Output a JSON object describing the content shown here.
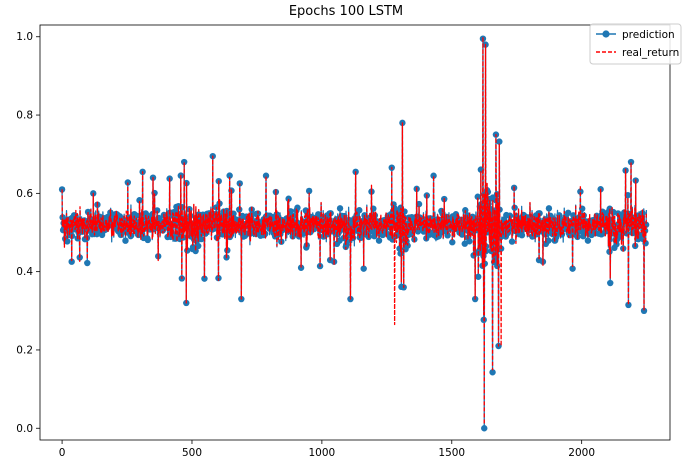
{
  "chart_data": {
    "type": "line",
    "title": "Epochs 100 LSTM",
    "xlabel": "",
    "ylabel": "",
    "xlim": [
      -85,
      2340
    ],
    "ylim": [
      -0.03,
      1.03
    ],
    "xticks": [
      0,
      500,
      1000,
      1500,
      2000
    ],
    "yticks": [
      0.0,
      0.2,
      0.4,
      0.6,
      0.8,
      1.0
    ],
    "xtick_labels": [
      "0",
      "500",
      "1000",
      "1500",
      "2000"
    ],
    "ytick_labels": [
      "0.0",
      "0.2",
      "0.4",
      "0.6",
      "0.8",
      "1.0"
    ],
    "grid": false,
    "legend_position": "top-right",
    "n_points": 2250,
    "series": [
      {
        "name": "prediction",
        "style": "solid line with circle markers",
        "color": "#1f77b4",
        "baseline": 0.52,
        "notable_points": [
          {
            "x": 0,
            "y": 0.61
          },
          {
            "x": 120,
            "y": 0.6
          },
          {
            "x": 310,
            "y": 0.655
          },
          {
            "x": 350,
            "y": 0.64
          },
          {
            "x": 470,
            "y": 0.68
          },
          {
            "x": 478,
            "y": 0.32
          },
          {
            "x": 580,
            "y": 0.695
          },
          {
            "x": 690,
            "y": 0.33
          },
          {
            "x": 785,
            "y": 0.645
          },
          {
            "x": 920,
            "y": 0.41
          },
          {
            "x": 1110,
            "y": 0.33
          },
          {
            "x": 1130,
            "y": 0.655
          },
          {
            "x": 1310,
            "y": 0.78
          },
          {
            "x": 1315,
            "y": 0.36
          },
          {
            "x": 1430,
            "y": 0.645
          },
          {
            "x": 1590,
            "y": 0.33
          },
          {
            "x": 1620,
            "y": 0.995
          },
          {
            "x": 1625,
            "y": 0.0
          },
          {
            "x": 1630,
            "y": 0.98
          },
          {
            "x": 1670,
            "y": 0.75
          },
          {
            "x": 1680,
            "y": 0.21
          },
          {
            "x": 2180,
            "y": 0.315
          },
          {
            "x": 2190,
            "y": 0.68
          },
          {
            "x": 2240,
            "y": 0.3
          }
        ]
      },
      {
        "name": "real_return",
        "style": "dashed",
        "color": "#ff0000",
        "baseline": 0.52,
        "notable_points": [
          {
            "x": 1280,
            "y": 0.265
          },
          {
            "x": 1620,
            "y": 1.0
          },
          {
            "x": 1625,
            "y": 0.01
          },
          {
            "x": 1690,
            "y": 0.21
          }
        ]
      }
    ]
  }
}
